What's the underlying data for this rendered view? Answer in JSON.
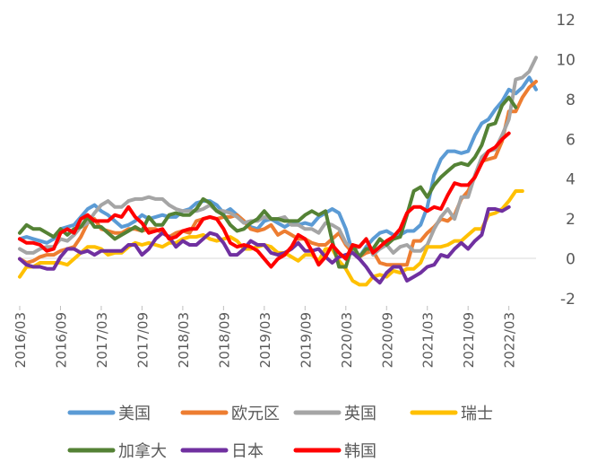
{
  "chart_data": {
    "type": "line",
    "title": "",
    "xlabel": "",
    "ylabel": "",
    "ylim": [
      -2,
      12
    ],
    "yticks": [
      -2,
      0,
      2,
      4,
      6,
      8,
      10,
      12
    ],
    "x_start": "2016/03",
    "x_end": "2022/07",
    "x_step": "monthly",
    "xtick_labels": [
      "2016/03",
      "2016/09",
      "2017/03",
      "2017/09",
      "2018/03",
      "2018/09",
      "2019/03",
      "2019/09",
      "2020/03",
      "2020/09",
      "2021/03",
      "2021/09",
      "2022/03"
    ],
    "legend_position": "bottom",
    "grid": false,
    "series": [
      {
        "name": "美国",
        "color": "#5B9BD5",
        "values": [
          1.0,
          1.1,
          1.0,
          0.9,
          0.8,
          1.0,
          1.5,
          1.6,
          1.7,
          2.1,
          2.5,
          2.7,
          2.4,
          2.2,
          1.9,
          1.6,
          1.7,
          1.9,
          2.2,
          2.0,
          2.1,
          2.2,
          2.1,
          2.1,
          2.4,
          2.5,
          2.8,
          2.9,
          2.9,
          2.7,
          2.3,
          2.5,
          2.2,
          1.9,
          1.6,
          1.5,
          1.9,
          2.0,
          1.8,
          1.6,
          1.8,
          1.7,
          1.8,
          1.7,
          2.1,
          2.3,
          2.5,
          2.3,
          1.5,
          0.3,
          0.1,
          0.6,
          1.0,
          1.3,
          1.4,
          1.2,
          1.2,
          1.4,
          1.4,
          1.7,
          2.6,
          4.2,
          5.0,
          5.4,
          5.4,
          5.3,
          5.4,
          6.2,
          6.8,
          7.0,
          7.5,
          7.9,
          8.5,
          8.3,
          8.6,
          9.1,
          8.5
        ]
      },
      {
        "name": "欧元区",
        "color": "#ED7D31",
        "values": [
          0.0,
          -0.2,
          -0.1,
          0.1,
          0.2,
          0.2,
          0.4,
          0.5,
          0.6,
          1.1,
          1.8,
          2.0,
          1.5,
          1.4,
          1.3,
          1.3,
          1.5,
          1.5,
          1.4,
          1.5,
          1.5,
          1.3,
          1.1,
          1.3,
          1.4,
          1.3,
          1.9,
          2.0,
          2.1,
          2.0,
          2.1,
          2.1,
          2.2,
          1.9,
          1.5,
          1.4,
          1.5,
          1.7,
          1.2,
          1.4,
          1.2,
          1.0,
          1.0,
          0.8,
          0.7,
          0.7,
          1.0,
          1.3,
          0.7,
          0.3,
          0.1,
          0.3,
          0.4,
          -0.2,
          -0.3,
          -0.3,
          -0.3,
          -0.3,
          0.9,
          0.9,
          1.3,
          1.6,
          2.0,
          1.9,
          2.2,
          3.0,
          3.4,
          4.1,
          4.9,
          5.0,
          5.1,
          5.9,
          7.4,
          7.4,
          8.1,
          8.6,
          8.9
        ]
      },
      {
        "name": "英国",
        "color": "#A5A5A5",
        "values": [
          0.5,
          0.3,
          0.3,
          0.5,
          0.6,
          0.6,
          1.0,
          0.9,
          1.2,
          1.6,
          1.8,
          2.3,
          2.7,
          2.9,
          2.6,
          2.6,
          2.9,
          3.0,
          3.0,
          3.1,
          3.0,
          3.0,
          2.7,
          2.5,
          2.4,
          2.4,
          2.4,
          2.5,
          2.7,
          2.4,
          2.4,
          2.3,
          2.1,
          1.8,
          1.9,
          1.9,
          2.1,
          2.0,
          2.0,
          2.1,
          1.7,
          1.7,
          1.5,
          1.5,
          1.3,
          1.8,
          1.7,
          1.5,
          0.8,
          0.5,
          0.6,
          1.0,
          0.2,
          0.5,
          0.7,
          0.3,
          0.6,
          0.7,
          0.4,
          0.4,
          0.7,
          1.5,
          2.1,
          2.5,
          2.0,
          3.1,
          3.1,
          4.2,
          5.1,
          5.4,
          5.5,
          6.2,
          7.0,
          9.0,
          9.1,
          9.4,
          10.1
        ]
      },
      {
        "name": "瑞士",
        "color": "#FFC000",
        "values": [
          -0.9,
          -0.4,
          -0.4,
          -0.2,
          -0.2,
          -0.2,
          -0.2,
          -0.3,
          0.0,
          0.3,
          0.6,
          0.6,
          0.5,
          0.2,
          0.3,
          0.3,
          0.6,
          0.8,
          0.7,
          0.8,
          0.7,
          0.6,
          0.8,
          0.8,
          1.0,
          1.1,
          1.1,
          1.2,
          1.0,
          0.9,
          1.0,
          1.1,
          0.9,
          0.5,
          0.5,
          0.6,
          0.7,
          0.6,
          0.3,
          0.3,
          0.1,
          -0.1,
          0.2,
          0.2,
          -0.1,
          0.5,
          0.5,
          -0.1,
          -0.5,
          -1.1,
          -1.3,
          -1.3,
          -0.9,
          -0.8,
          -0.9,
          -0.6,
          -0.7,
          -0.5,
          -0.5,
          -0.2,
          0.6,
          0.6,
          0.6,
          0.7,
          0.9,
          0.9,
          1.2,
          1.5,
          1.5,
          2.2,
          2.3,
          2.5,
          2.9,
          3.4,
          3.4
        ]
      },
      {
        "name": "加拿大",
        "color": "#548235",
        "values": [
          1.3,
          1.7,
          1.5,
          1.5,
          1.3,
          1.1,
          1.5,
          1.2,
          1.5,
          1.6,
          2.1,
          1.6,
          1.6,
          1.3,
          1.0,
          1.2,
          1.4,
          1.6,
          1.4,
          2.1,
          1.7,
          1.7,
          2.2,
          2.3,
          2.2,
          2.2,
          2.5,
          3.0,
          2.8,
          2.4,
          2.2,
          1.7,
          1.4,
          1.5,
          1.8,
          2.0,
          2.4,
          2.0,
          2.0,
          1.9,
          1.9,
          1.9,
          2.2,
          2.4,
          2.2,
          2.4,
          0.9,
          -0.4,
          -0.4,
          0.7,
          0.1,
          0.5,
          0.5,
          1.0,
          0.7,
          1.0,
          1.1,
          2.2,
          3.4,
          3.6,
          3.1,
          3.7,
          4.1,
          4.4,
          4.7,
          4.8,
          4.7,
          5.1,
          5.7,
          6.7,
          6.8,
          7.7,
          8.1,
          7.6
        ]
      },
      {
        "name": "日本",
        "color": "#7030A0",
        "values": [
          0.0,
          -0.3,
          -0.4,
          -0.4,
          -0.5,
          -0.5,
          0.1,
          0.5,
          0.5,
          0.3,
          0.4,
          0.2,
          0.4,
          0.4,
          0.4,
          0.4,
          0.7,
          0.7,
          0.2,
          0.5,
          1.0,
          1.3,
          1.1,
          0.6,
          0.9,
          0.7,
          0.7,
          1.0,
          1.3,
          1.2,
          0.8,
          0.2,
          0.2,
          0.5,
          0.9,
          0.7,
          0.7,
          0.3,
          0.2,
          0.3,
          0.5,
          0.8,
          0.4,
          0.4,
          0.5,
          0.1,
          -0.2,
          0.1,
          0.2,
          0.3,
          0.0,
          -0.4,
          -0.9,
          -1.2,
          -0.7,
          -0.4,
          -0.4,
          -1.1,
          -0.9,
          -0.7,
          -0.4,
          -0.3,
          0.2,
          0.1,
          0.5,
          0.8,
          0.5,
          0.9,
          1.2,
          2.5,
          2.5,
          2.4,
          2.6
        ]
      },
      {
        "name": "韩国",
        "color": "#FF0000",
        "values": [
          1.0,
          0.8,
          0.8,
          0.7,
          0.4,
          0.5,
          1.3,
          1.5,
          1.3,
          2.0,
          2.2,
          1.9,
          1.9,
          1.9,
          2.2,
          2.1,
          2.6,
          2.1,
          1.8,
          1.3,
          1.4,
          1.5,
          1.0,
          1.1,
          1.4,
          1.5,
          1.5,
          2.0,
          2.1,
          2.0,
          1.5,
          0.8,
          0.6,
          0.7,
          0.6,
          0.4,
          0.0,
          -0.4,
          0.0,
          0.2,
          0.6,
          1.2,
          1.0,
          0.4,
          -0.3,
          0.1,
          0.7,
          0.3,
          0.0,
          0.7,
          0.6,
          1.0,
          0.3,
          0.6,
          0.9,
          1.1,
          1.5,
          2.3,
          2.6,
          2.6,
          2.4,
          2.6,
          2.5,
          3.2,
          3.8,
          3.7,
          3.7,
          4.1,
          4.8,
          5.4,
          5.6,
          6.0,
          6.3
        ]
      }
    ]
  }
}
